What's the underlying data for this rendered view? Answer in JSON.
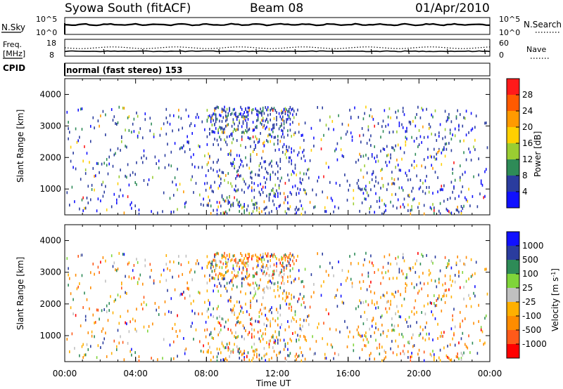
{
  "header": {
    "station": "Syowa South (fitACF)",
    "beam": "Beam 08",
    "date": "01/Apr/2010"
  },
  "top_panels": {
    "nsky_label": "N.Sky",
    "nsky_ticks": [
      "10^5",
      "10^0"
    ],
    "nsearch_label": "N.Search",
    "nsearch_ticks": [
      "10^5",
      "10^0"
    ],
    "freq_label": "Freq.",
    "freq_unit": "[MHz]",
    "freq_ticks": [
      "18",
      "8"
    ],
    "nave_label": "Nave",
    "nave_ticks": [
      "60",
      "0"
    ],
    "cpid_label": "CPID",
    "cpid_value": "normal (fast stereo) 153"
  },
  "colors": {
    "power": [
      "#1010ff",
      "#2a3c9e",
      "#2e8b57",
      "#9acd32",
      "#ffd000",
      "#ff9a00",
      "#ff5a00",
      "#ff1a1a"
    ],
    "velocity": [
      "#ff0000",
      "#ff5a1a",
      "#ff8c00",
      "#ffb000",
      "#c0c0c0",
      "#7fd43a",
      "#2e8b57",
      "#2a3c9e",
      "#1010ff"
    ]
  },
  "chart_data": [
    {
      "type": "heatmap",
      "name": "power",
      "ylabel": "Slant Range [km]",
      "y_ticks": [
        "1000",
        "2000",
        "3000",
        "4000"
      ],
      "ylim": [
        180,
        4500
      ],
      "colorbar_label": "Power [dB]",
      "colorbar_ticks": [
        "4",
        "8",
        "12",
        "16",
        "20",
        "24",
        "28"
      ],
      "clim": [
        0,
        32
      ],
      "activity_windows_ut_hours": [
        [
          8.0,
          13.0
        ],
        [
          16.5,
          22.5
        ]
      ],
      "note_values": "scattered echoes; most values 4-8 dB"
    },
    {
      "type": "heatmap",
      "name": "velocity",
      "ylabel": "Slant Range [km]",
      "y_ticks": [
        "1000",
        "2000",
        "3000",
        "4000"
      ],
      "ylim": [
        180,
        4500
      ],
      "colorbar_label": "Velocity [m s",
      "colorbar_label_sup": "-1",
      "colorbar_label_end": "]",
      "colorbar_ticks": [
        "1000",
        "500",
        "100",
        "25",
        "-25",
        "-100",
        "-500",
        "-1000"
      ],
      "xlabel": "Time UT",
      "x_ticks": [
        "00:00",
        "04:00",
        "08:00",
        "12:00",
        "16:00",
        "20:00",
        "00:00"
      ],
      "xlim_hours": [
        0,
        24
      ]
    }
  ]
}
